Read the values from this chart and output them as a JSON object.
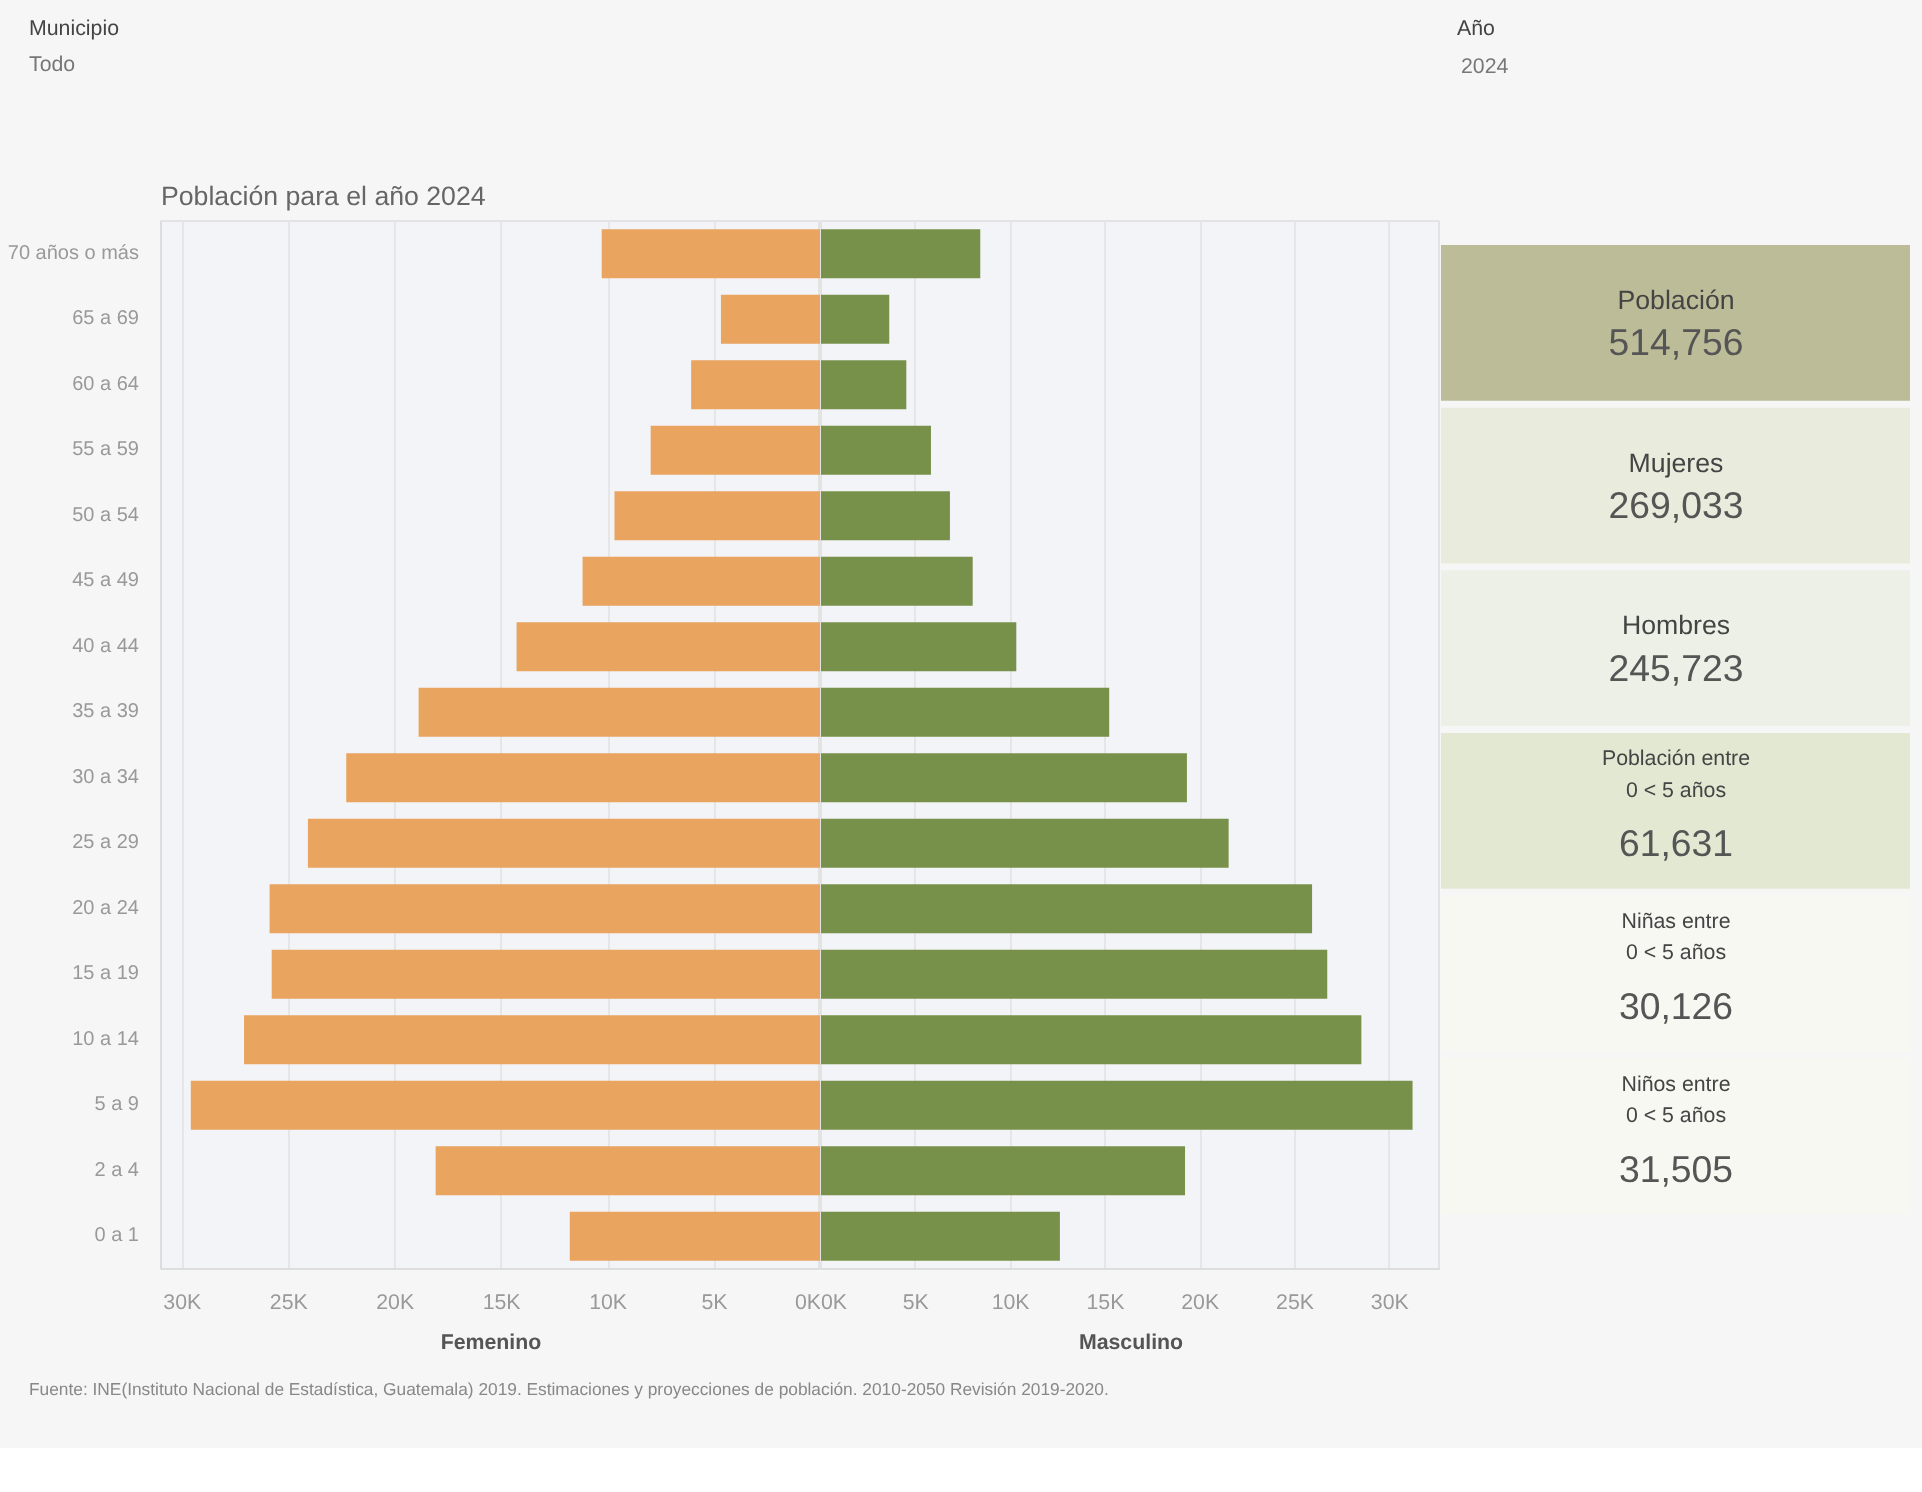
{
  "chart_data": [
    {
      "type": "other",
      "annotations": [
        "Municipio",
        "Todo",
        "Año",
        "2024"
      ]
    },
    {
      "type": "bar",
      "orientation": "horizontal",
      "title": "Población para el año 2024",
      "xlabel": "Femenino",
      "categories": [
        "70 años o más",
        "65 a 69",
        "60 a 64",
        "55 a 59",
        "50 a 54",
        "45 a 49",
        "40 a 44",
        "35 a 39",
        "30 a 34",
        "25 a 29",
        "20 a 24",
        "15 a 19",
        "10 a 14",
        "5 a 9",
        "2 a 4",
        "0 a 1"
      ],
      "series": [
        {
          "color": "#e9a55f",
          "values": [
            10300,
            4700,
            6100,
            8000,
            9700,
            11200,
            14300,
            18900,
            22300,
            24100,
            25900,
            25800,
            27100,
            29600,
            18100,
            11800
          ]
        }
      ],
      "xlim": [
        31000,
        0
      ],
      "xticks": [
        {
          "value": 30000,
          "label": "30K"
        },
        {
          "value": 25000,
          "label": "25K"
        },
        {
          "value": 20000,
          "label": "20K"
        },
        {
          "value": 15000,
          "label": "15K"
        },
        {
          "value": 10000,
          "label": "10K"
        },
        {
          "value": 5000,
          "label": "5K"
        },
        {
          "value": 0,
          "label": "0K"
        }
      ],
      "grid": "x"
    },
    {
      "type": "bar",
      "orientation": "horizontal",
      "xlabel": "Masculino",
      "tick_labels": "x",
      "categories": [
        null,
        null,
        null,
        null,
        null,
        null,
        null,
        null,
        null,
        null,
        null,
        null,
        null,
        null,
        null,
        null
      ],
      "series": [
        {
          "color": "#78914a",
          "values": [
            8400,
            3600,
            4500,
            5800,
            6800,
            8000,
            10300,
            15200,
            19300,
            21500,
            25900,
            26700,
            28500,
            31200,
            19200,
            12600
          ]
        }
      ],
      "xlim": [
        0,
        32700
      ],
      "xticks": [
        {
          "value": 0,
          "label": "0K"
        },
        {
          "value": 5000,
          "label": "5K"
        },
        {
          "value": 10000,
          "label": "10K"
        },
        {
          "value": 15000,
          "label": "15K"
        },
        {
          "value": 20000,
          "label": "20K"
        },
        {
          "value": 25000,
          "label": "25K"
        },
        {
          "value": 30000,
          "label": "30K"
        }
      ],
      "grid": "x"
    },
    {
      "type": "other",
      "colors": [
        "#bcbd98",
        "#e9ecdc",
        "#edf0e6",
        "#e3e8d2",
        "#f6f8f1",
        "#f6f8f1"
      ],
      "annotations": [
        "Población",
        "514,756",
        "Mujeres",
        "269,033",
        "Hombres",
        "245,723",
        "Población entre\n0 < 5 años",
        "61,631",
        "Niñas entre\n0 < 5 años",
        "30,126",
        "Niños entre\n0 < 5 años",
        "31,505"
      ]
    },
    {
      "type": "other",
      "annotations": [
        "Fuente: INE(Instituto Nacional de Estadística, Guatemala) 2019. Estimaciones y proyecciones de población. 2010-2050 Revisión 2019-2020."
      ]
    }
  ]
}
